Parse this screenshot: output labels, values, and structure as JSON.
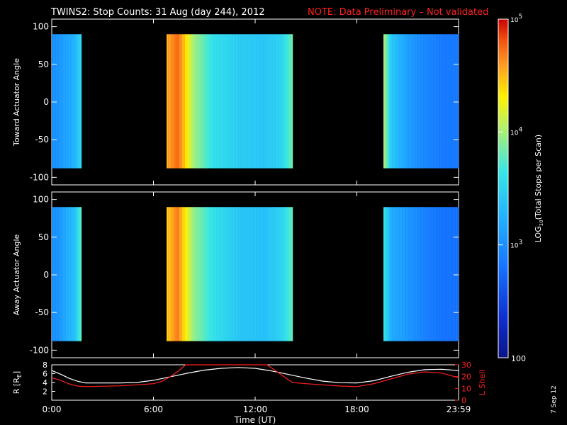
{
  "header": {
    "title": "TWINS2: Stop Counts: 31 Aug (day 244), 2012",
    "note": "NOTE: Data Preliminary – Not validated"
  },
  "footer": {
    "date_stamp": "7 Sep 12"
  },
  "colors": {
    "background": "#000000",
    "text": "#ffffff",
    "note": "#ff2020",
    "frame": "#ffffff",
    "lshell": "#ff2020",
    "radius": "#ffffff",
    "colormap": [
      "#0a1488",
      "#0e2fd0",
      "#1570ff",
      "#22b4ff",
      "#36e6e6",
      "#b4f06a",
      "#fff200",
      "#ffa020",
      "#f05010",
      "#c80000"
    ]
  },
  "chart_data": [
    {
      "type": "heatmap",
      "panel": "top",
      "ylabel": "Toward Actuator Angle",
      "xlim": [
        0,
        24
      ],
      "ylim": [
        -110,
        110
      ],
      "yticks": [
        100,
        50,
        0,
        -50,
        -100
      ],
      "x_units": "hours UT",
      "data_band_deg": [
        -88,
        90
      ],
      "log_counts_scale": [
        2,
        5
      ],
      "segments": [
        {
          "start_h": 0.0,
          "end_h": 1.7,
          "fill_h": [
            0.0,
            0.4,
            0.8,
            1.3,
            1.7
          ],
          "fill_log": [
            3.0,
            3.05,
            3.15,
            3.25,
            3.55
          ]
        },
        {
          "start_h": 6.8,
          "end_h": 14.2,
          "fill_h": [
            6.8,
            7.4,
            7.8,
            8.3,
            9.5,
            11.0,
            12.5,
            13.5,
            14.2
          ],
          "fill_log": [
            4.55,
            4.75,
            4.45,
            4.0,
            3.6,
            3.45,
            3.4,
            3.5,
            3.85
          ]
        },
        {
          "start_h": 19.6,
          "end_h": 24.0,
          "fill_h": [
            19.6,
            20.0,
            21.0,
            22.0,
            23.0,
            24.0
          ],
          "fill_log": [
            4.0,
            3.4,
            3.1,
            2.95,
            2.85,
            2.85
          ]
        }
      ]
    },
    {
      "type": "heatmap",
      "panel": "middle",
      "ylabel": "Away Actuator Angle",
      "xlim": [
        0,
        24
      ],
      "ylim": [
        -110,
        110
      ],
      "yticks": [
        100,
        50,
        0,
        -50,
        -100
      ],
      "x_units": "hours UT",
      "data_band_deg": [
        -88,
        90
      ],
      "log_counts_scale": [
        2,
        5
      ],
      "segments": [
        {
          "start_h": 0.0,
          "end_h": 1.7,
          "fill_h": [
            0.0,
            0.4,
            0.8,
            1.3,
            1.7
          ],
          "fill_log": [
            3.0,
            3.05,
            3.2,
            3.35,
            3.8
          ]
        },
        {
          "start_h": 6.8,
          "end_h": 14.2,
          "fill_h": [
            6.8,
            7.4,
            7.8,
            8.3,
            9.5,
            11.0,
            12.5,
            13.5,
            14.2
          ],
          "fill_log": [
            4.45,
            4.7,
            4.35,
            3.95,
            3.6,
            3.4,
            3.35,
            3.5,
            3.8
          ]
        },
        {
          "start_h": 19.6,
          "end_h": 24.0,
          "fill_h": [
            19.6,
            20.0,
            21.0,
            22.0,
            23.0,
            24.0
          ],
          "fill_log": [
            3.6,
            3.2,
            3.05,
            2.9,
            2.8,
            2.8
          ]
        }
      ]
    },
    {
      "type": "line",
      "panel": "bottom",
      "xlabel": "Time (UT)",
      "xlim": [
        0,
        24
      ],
      "xticks": [
        0,
        6,
        12,
        18,
        24
      ],
      "xtick_labels": [
        "0:00",
        "6:00",
        "12:00",
        "18:00",
        "23:59"
      ],
      "left_axis": {
        "label": "R [R",
        "label_sub": "E",
        "label_end": "]",
        "ylim": [
          0,
          8
        ],
        "ticks": [
          2,
          4,
          6,
          8
        ]
      },
      "right_axis": {
        "label": "L Shell",
        "ylim": [
          0,
          30
        ],
        "ticks": [
          0,
          10,
          20,
          30
        ]
      },
      "series": [
        {
          "axis": "left",
          "x": [
            0,
            0.5,
            1,
            1.5,
            2,
            3,
            4,
            5,
            6,
            7,
            8,
            9,
            10,
            11,
            12,
            13,
            14,
            15,
            16,
            17,
            18,
            19,
            20,
            21,
            22,
            23,
            24
          ],
          "y": [
            6.7,
            5.9,
            5.0,
            4.3,
            3.9,
            3.9,
            3.9,
            4.0,
            4.5,
            5.3,
            6.1,
            6.8,
            7.2,
            7.4,
            7.2,
            6.6,
            5.8,
            5.0,
            4.3,
            3.95,
            3.9,
            4.4,
            5.4,
            6.3,
            6.9,
            7.0,
            6.7
          ]
        },
        {
          "axis": "right",
          "x": [
            0,
            0.5,
            1,
            1.5,
            2,
            3,
            4,
            5,
            6,
            6.5,
            7,
            7.5,
            7.9,
            12.7,
            13.2,
            13.7,
            14.2,
            15,
            16,
            17,
            18,
            19,
            20,
            21,
            22,
            23,
            24
          ],
          "y": [
            19,
            17,
            14,
            12,
            11.5,
            11.8,
            12.2,
            13,
            14,
            16,
            20,
            25,
            30,
            30,
            25,
            20,
            15,
            14,
            13,
            12,
            11.5,
            14,
            18,
            22,
            24,
            23,
            19
          ]
        }
      ]
    },
    {
      "type": "heatmap",
      "panel": "colorbar",
      "label": "LOG",
      "label_sub": "10",
      "label_rest": "(Total Stops per Scan)",
      "scale": "log",
      "range": [
        100,
        100000
      ],
      "tick_bases": [
        "10",
        "10",
        "10"
      ],
      "tick_exponents": [
        "5",
        "4",
        "3"
      ],
      "tick_values_log": [
        5,
        4,
        3
      ],
      "bottom_label": "100"
    }
  ]
}
